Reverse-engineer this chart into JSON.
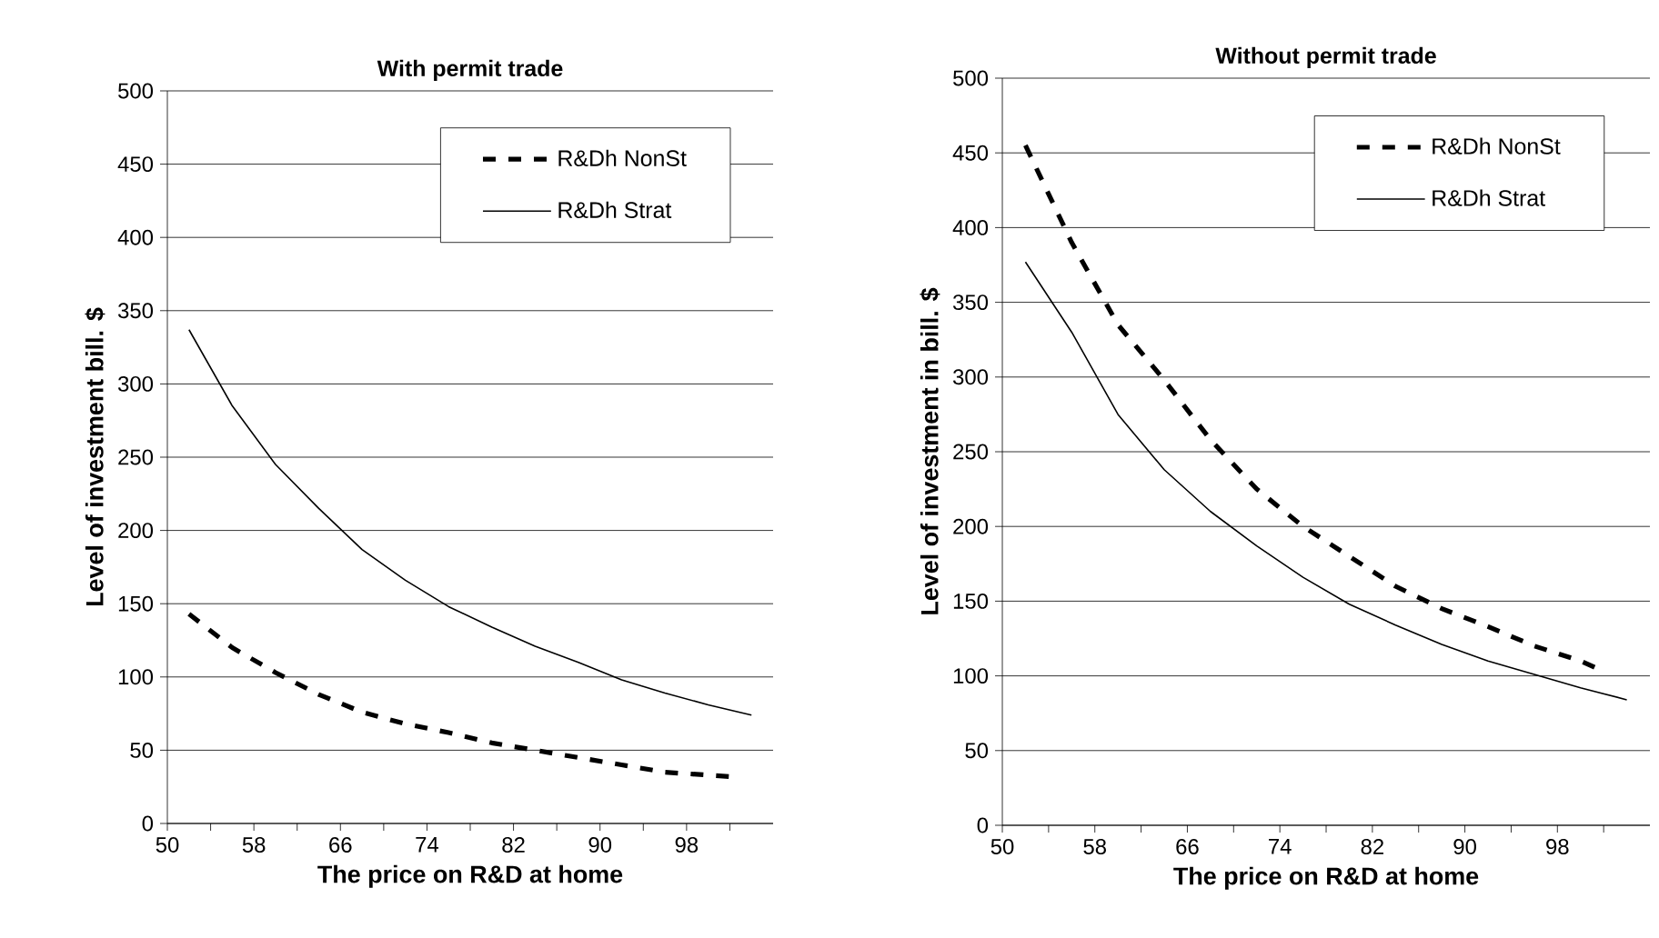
{
  "chart_data": [
    {
      "type": "line",
      "title": "With permit trade",
      "xlabel": "The price on R&D at home",
      "ylabel": "Level of investment bill. $",
      "xlim": [
        50,
        106
      ],
      "ylim": [
        0,
        500
      ],
      "xticks": [
        50,
        {
          "value": 54,
          "label": null
        },
        58,
        {
          "value": 62,
          "label": null
        },
        66,
        {
          "value": 70,
          "label": null
        },
        74,
        {
          "value": 78,
          "label": null
        },
        82,
        {
          "value": 86,
          "label": null
        },
        90,
        {
          "value": 94,
          "label": null
        },
        98,
        {
          "value": 102,
          "label": null
        }
      ],
      "yticks": [
        0,
        50,
        100,
        150,
        200,
        250,
        300,
        350,
        400,
        450,
        500
      ],
      "grid": "y",
      "legend": "top right",
      "series": [
        {
          "name": "R&Dh NonSt",
          "color": "#000000",
          "line_style": "dashed",
          "x": [
            52,
            56,
            60,
            64,
            68,
            72,
            76,
            80,
            84,
            88,
            92,
            96,
            100,
            102
          ],
          "values": [
            143,
            120,
            103,
            88,
            76,
            68,
            62,
            55,
            50,
            45,
            40,
            35,
            33,
            32
          ]
        },
        {
          "name": "R&Dh Strat",
          "color": "#000000",
          "line_style": "solid",
          "x": [
            52,
            56,
            60,
            64,
            68,
            72,
            76,
            80,
            84,
            88,
            92,
            96,
            100,
            104
          ],
          "values": [
            337,
            285,
            245,
            215,
            187,
            166,
            148,
            134,
            121,
            110,
            98,
            89,
            81,
            74
          ]
        }
      ]
    },
    {
      "type": "line",
      "title": "Without permit trade",
      "xlabel": "The price on R&D at home",
      "ylabel": "Level of investment in bill. $",
      "xlim": [
        50,
        106
      ],
      "ylim": [
        0,
        500
      ],
      "xticks": [
        50,
        {
          "value": 54,
          "label": null
        },
        58,
        {
          "value": 62,
          "label": null
        },
        66,
        {
          "value": 70,
          "label": null
        },
        74,
        {
          "value": 78,
          "label": null
        },
        82,
        {
          "value": 86,
          "label": null
        },
        90,
        {
          "value": 94,
          "label": null
        },
        98,
        {
          "value": 102,
          "label": null
        }
      ],
      "yticks": [
        0,
        50,
        100,
        150,
        200,
        250,
        300,
        350,
        400,
        450,
        500
      ],
      "grid": "y",
      "legend": "top right",
      "series": [
        {
          "name": "R&Dh NonSt",
          "color": "#000000",
          "line_style": "dashed",
          "x": [
            52,
            56,
            60,
            64,
            68,
            72,
            76,
            80,
            84,
            88,
            92,
            96,
            100,
            102
          ],
          "values": [
            455,
            390,
            335,
            298,
            258,
            225,
            200,
            180,
            160,
            145,
            133,
            120,
            110,
            103
          ]
        },
        {
          "name": "R&Dh Strat",
          "color": "#000000",
          "line_style": "solid",
          "x": [
            52,
            56,
            60,
            64,
            68,
            72,
            76,
            80,
            84,
            88,
            92,
            96,
            100,
            104
          ],
          "values": [
            377,
            330,
            275,
            238,
            210,
            187,
            166,
            148,
            134,
            121,
            110,
            101,
            92,
            84
          ]
        }
      ]
    }
  ]
}
